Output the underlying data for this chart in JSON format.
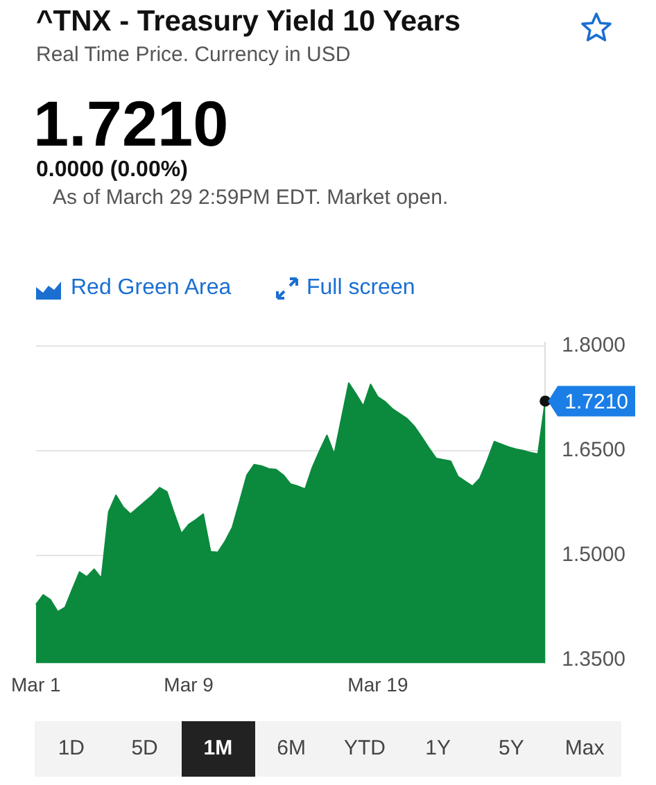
{
  "chart_data": {
    "type": "area",
    "title": "^TNX - Treasury Yield 10 Years",
    "subtitle": "Real Time Price. Currency in USD",
    "annotations": [
      "1.7210",
      "0.0000 (0.00%)",
      "As of March 29 2:59PM EDT. Market open.",
      "Red Green Area",
      "Full screen",
      "1D",
      "5D",
      "1M",
      "6M",
      "YTD",
      "1Y",
      "5Y",
      "Max"
    ],
    "categories": [
      "Mar 1",
      null,
      null,
      null,
      null,
      null,
      null,
      null,
      null,
      null,
      null,
      null,
      null,
      null,
      null,
      null,
      null,
      null,
      null,
      null,
      null,
      "Mar 9",
      null,
      null,
      null,
      null,
      null,
      null,
      null,
      null,
      null,
      null,
      null,
      null,
      null,
      null,
      null,
      null,
      null,
      null,
      null,
      null,
      null,
      null,
      null,
      null,
      null,
      "Mar 19",
      null,
      null,
      null,
      null,
      null,
      null,
      null,
      null,
      null,
      null,
      null,
      null,
      null,
      null,
      null,
      null,
      null,
      null,
      null,
      null,
      null,
      null,
      null
    ],
    "values": [
      1.429,
      1.443,
      1.436,
      1.419,
      1.425,
      1.451,
      1.476,
      1.469,
      1.48,
      1.467,
      1.562,
      1.586,
      1.569,
      1.559,
      1.568,
      1.577,
      1.586,
      1.597,
      1.591,
      1.56,
      1.531,
      1.544,
      1.551,
      1.559,
      1.505,
      1.504,
      1.52,
      1.54,
      1.577,
      1.615,
      1.63,
      1.628,
      1.624,
      1.623,
      1.615,
      1.602,
      1.599,
      1.595,
      1.626,
      1.65,
      1.672,
      1.645,
      1.696,
      1.747,
      1.731,
      1.714,
      1.745,
      1.727,
      1.72,
      1.71,
      1.703,
      1.696,
      1.685,
      1.67,
      1.654,
      1.639,
      1.637,
      1.635,
      1.613,
      1.606,
      1.599,
      1.61,
      1.635,
      1.663,
      1.659,
      1.655,
      1.652,
      1.65,
      1.647,
      1.645,
      1.721
    ],
    "value_labels": [
      null,
      null,
      null,
      null,
      null,
      null,
      null,
      null,
      null,
      null,
      null,
      null,
      null,
      null,
      null,
      null,
      null,
      null,
      null,
      null,
      null,
      null,
      null,
      null,
      null,
      null,
      null,
      null,
      null,
      null,
      null,
      null,
      null,
      null,
      null,
      null,
      null,
      null,
      null,
      null,
      null,
      null,
      null,
      null,
      null,
      null,
      null,
      null,
      null,
      null,
      null,
      null,
      null,
      null,
      null,
      null,
      null,
      null,
      null,
      null,
      null,
      null,
      null,
      null,
      null,
      null,
      null,
      null,
      null,
      null,
      "1.7210"
    ],
    "color": "#0b8a3e",
    "ylim": [
      1.345,
      1.805
    ],
    "yticks": [
      {
        "value": 1.35,
        "label": "1.3500"
      },
      {
        "value": 1.5,
        "label": "1.5000"
      },
      {
        "value": 1.65,
        "label": "1.6500"
      },
      {
        "value": 1.8,
        "label": "1.8000"
      }
    ],
    "grid": "y",
    "legend": false,
    "marker": "none"
  }
}
